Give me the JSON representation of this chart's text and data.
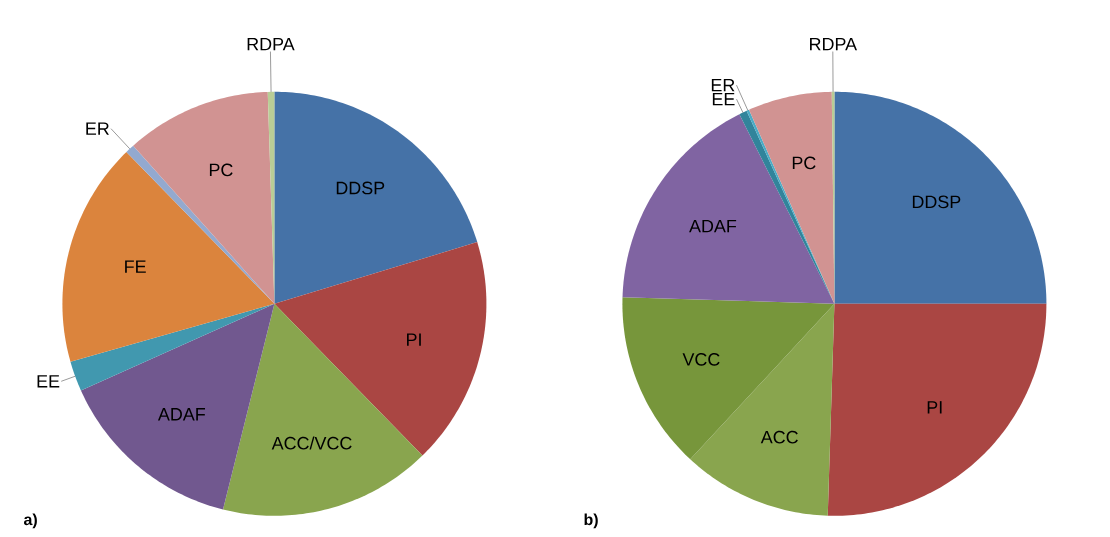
{
  "chart_data": [
    {
      "type": "pie",
      "categories": [
        "DDSP",
        "PI",
        "ACC/VCC",
        "ADAF",
        "EE",
        "FE",
        "ER",
        "PC",
        "RDPA"
      ],
      "values": [
        20.3,
        17.4,
        16.2,
        14.4,
        2.3,
        17.1,
        0.7,
        11.1,
        0.5
      ],
      "colors": [
        "#4572a7",
        "#aa4643",
        "#89a54e",
        "#71588f",
        "#4198af",
        "#db843d",
        "#93a9cf",
        "#d19392",
        "#b9cd96"
      ],
      "annotations": [
        "a)"
      ]
    },
    {
      "type": "pie",
      "categories": [
        "DDSP",
        "PI",
        "ACC",
        "VCC",
        "ADAF",
        "EE",
        "ER",
        "PC",
        "RDPA"
      ],
      "values": [
        25.0,
        25.5,
        11.4,
        13.6,
        17.1,
        0.6,
        0.2,
        6.4,
        0.2
      ],
      "colors": [
        "#4572a7",
        "#aa4643",
        "#89a54e",
        "#77963b",
        "#8064a2",
        "#31849b",
        "#4bacc6",
        "#d19392",
        "#b9cd96"
      ],
      "annotations": [
        "b)"
      ]
    }
  ]
}
